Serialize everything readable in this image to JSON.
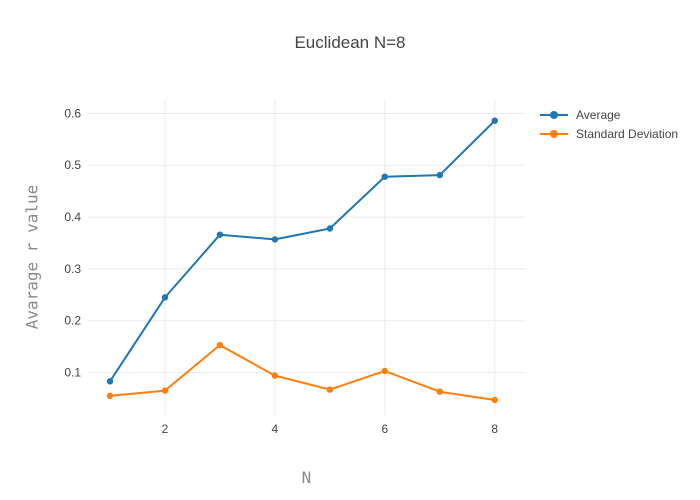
{
  "chart_data": {
    "type": "line",
    "title": "Euclidean N=8",
    "xlabel": "N",
    "ylabel": "Avarage r value",
    "x": [
      1,
      2,
      3,
      4,
      5,
      6,
      7,
      8
    ],
    "series": [
      {
        "name": "Average",
        "color": "#1f77b4",
        "marker": "circle",
        "values": [
          0.083,
          0.245,
          0.366,
          0.357,
          0.378,
          0.478,
          0.481,
          0.586
        ]
      },
      {
        "name": "Standard Deviation",
        "color": "#ff7f0e",
        "marker": "circle",
        "values": [
          0.055,
          0.065,
          0.153,
          0.094,
          0.067,
          0.103,
          0.063,
          0.047
        ]
      }
    ],
    "xticks": [
      2,
      4,
      6,
      8
    ],
    "yticks": [
      0.1,
      0.2,
      0.3,
      0.4,
      0.5,
      0.6
    ],
    "xlim": [
      0.6,
      8.55
    ],
    "ylim": [
      0.018,
      0.626
    ],
    "grid": true,
    "legend_position": "right-top",
    "colors": {
      "grid": "#ebebeb",
      "tick_label": "#444444",
      "axis_title": "#8a8a8a",
      "title": "#444444",
      "background": "#ffffff"
    }
  }
}
